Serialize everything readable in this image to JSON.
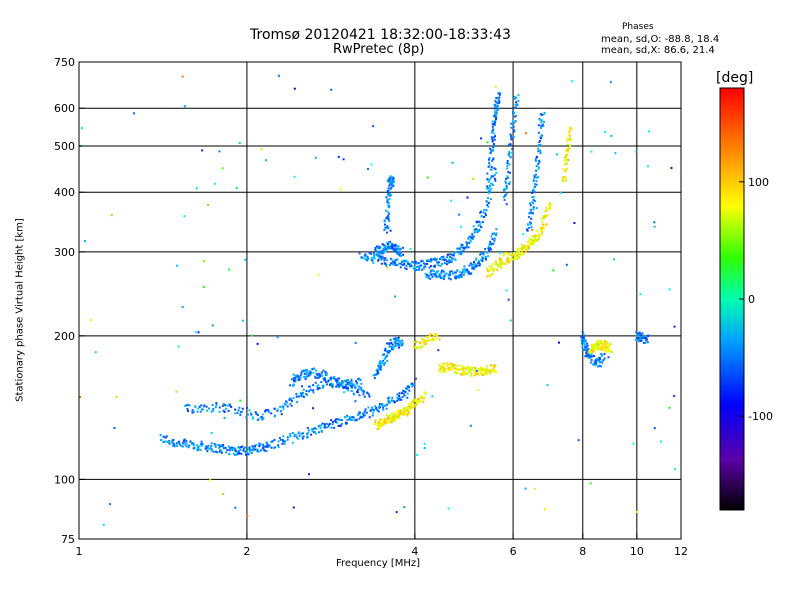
{
  "chart_data": {
    "type": "scatter",
    "title": "Tromsø 20120421 18:32:00-18:33:43",
    "subtitle": "RwPretec (8p)",
    "xlabel": "Frequency [MHz]",
    "ylabel": "Stationary phase Virtual Height [km]",
    "x_scale": "log",
    "y_scale": "log",
    "xlim": [
      1,
      12
    ],
    "ylim": [
      75,
      750
    ],
    "x_ticks": [
      1,
      2,
      4,
      6,
      8,
      10,
      12
    ],
    "x_tick_labels": [
      "1",
      "2",
      "4",
      "6",
      "8",
      "10",
      "12"
    ],
    "x_gridlines": [
      2,
      4,
      6,
      8,
      10
    ],
    "y_ticks": [
      75,
      100,
      200,
      300,
      400,
      500,
      600,
      750
    ],
    "y_tick_labels": [
      "75",
      "100",
      "200",
      "300",
      "400",
      "500",
      "600",
      "750"
    ],
    "y_gridlines": [
      100,
      200,
      300,
      400,
      500,
      600
    ],
    "grid": true,
    "colorbar": {
      "label": "[deg]",
      "range": [
        -180,
        180
      ],
      "ticks": [
        100,
        0,
        -100
      ],
      "tick_labels": [
        "100",
        "0",
        "-100"
      ]
    },
    "phases": {
      "title": "Phases",
      "o_mode": "mean, sd,O: -88.8, 18.4",
      "x_mode": "mean, sd,X: 86.6, 21.4"
    },
    "traces": [
      {
        "mode": "O",
        "phase": -100,
        "x": [
          1.4,
          1.5,
          1.6,
          1.7,
          1.8,
          1.9,
          2.0,
          2.1,
          2.2,
          2.4,
          2.6,
          2.8,
          3.0,
          3.2,
          3.4,
          3.6,
          3.8,
          4.0
        ],
        "y": [
          122,
          119,
          118,
          117,
          116,
          115,
          115,
          116,
          118,
          122,
          126,
          130,
          133,
          136,
          140,
          145,
          150,
          160
        ]
      },
      {
        "mode": "O",
        "phase": -100,
        "x": [
          1.55,
          1.7,
          1.9,
          2.1,
          2.3,
          2.5,
          2.7,
          2.9,
          3.1,
          3.3
        ],
        "y": [
          140,
          142,
          141,
          135,
          140,
          150,
          158,
          160,
          155,
          150
        ]
      },
      {
        "mode": "O",
        "phase": -100,
        "x": [
          2.4,
          2.5,
          2.6,
          2.75,
          2.9,
          3.05,
          3.2
        ],
        "y": [
          160,
          165,
          168,
          165,
          160,
          158,
          160
        ]
      },
      {
        "mode": "O",
        "phase": -100,
        "x": [
          3.4,
          3.5,
          3.6,
          3.7,
          3.8
        ],
        "y": [
          165,
          175,
          190,
          195,
          190
        ]
      },
      {
        "mode": "O",
        "phase": -100,
        "x": [
          3.2,
          3.4,
          3.6,
          3.8,
          4.0,
          4.2,
          4.4,
          4.6,
          4.8,
          5.0,
          5.2,
          5.4,
          5.6
        ],
        "y": [
          295,
          290,
          285,
          282,
          280,
          282,
          285,
          290,
          300,
          315,
          340,
          380,
          450
        ]
      },
      {
        "mode": "O",
        "phase": -100,
        "x": [
          4.2,
          4.4,
          4.6,
          4.8,
          5.0,
          5.2,
          5.4,
          5.6
        ],
        "y": [
          270,
          268,
          268,
          270,
          275,
          285,
          300,
          330
        ]
      },
      {
        "mode": "O",
        "phase": -100,
        "x": [
          3.4,
          3.5,
          3.6,
          3.7,
          3.8
        ],
        "y": [
          300,
          305,
          310,
          305,
          300
        ]
      },
      {
        "mode": "O",
        "phase": -100,
        "x": [
          3.55,
          3.58,
          3.6,
          3.62,
          3.65
        ],
        "y": [
          330,
          370,
          410,
          430,
          420
        ]
      },
      {
        "mode": "O",
        "phase": -100,
        "x": [
          5.4,
          5.5,
          5.55,
          5.6,
          5.65
        ],
        "y": [
          400,
          480,
          550,
          600,
          640
        ]
      },
      {
        "mode": "O",
        "phase": -100,
        "x": [
          6.4,
          6.5,
          6.6,
          6.7,
          6.8
        ],
        "y": [
          330,
          380,
          440,
          520,
          600
        ]
      },
      {
        "mode": "O",
        "phase": -100,
        "x": [
          5.8,
          5.9,
          6.0,
          6.1
        ],
        "y": [
          380,
          450,
          550,
          640
        ]
      },
      {
        "mode": "X",
        "phase": 100,
        "x": [
          3.4,
          3.5,
          3.6,
          3.7,
          3.8,
          3.9,
          4.0,
          4.2
        ],
        "y": [
          130,
          132,
          134,
          136,
          138,
          140,
          145,
          150
        ]
      },
      {
        "mode": "X",
        "phase": 100,
        "x": [
          4.4,
          4.6,
          4.8,
          5.0,
          5.2,
          5.4,
          5.6
        ],
        "y": [
          170,
          172,
          170,
          168,
          168,
          170,
          170
        ]
      },
      {
        "mode": "X",
        "phase": 100,
        "x": [
          4.0,
          4.2,
          4.4
        ],
        "y": [
          190,
          195,
          200
        ]
      },
      {
        "mode": "X",
        "phase": 100,
        "x": [
          5.4,
          5.6,
          5.8,
          6.0,
          6.2,
          6.4,
          6.6,
          6.8,
          7.0
        ],
        "y": [
          270,
          280,
          290,
          295,
          300,
          310,
          320,
          340,
          380
        ]
      },
      {
        "mode": "X",
        "phase": 100,
        "x": [
          7.4,
          7.5,
          7.6
        ],
        "y": [
          420,
          480,
          550
        ]
      },
      {
        "mode": "X",
        "phase": 100,
        "x": [
          8.2,
          8.4,
          8.6,
          8.8,
          9.0
        ],
        "y": [
          185,
          190,
          192,
          190,
          188
        ]
      },
      {
        "mode": "O",
        "phase": -100,
        "x": [
          8.0,
          8.1,
          8.2,
          8.5,
          8.7
        ],
        "y": [
          200,
          190,
          180,
          175,
          180
        ]
      },
      {
        "mode": "O",
        "phase": -100,
        "x": [
          10.0,
          10.2,
          10.5
        ],
        "y": [
          200,
          198,
          196
        ]
      }
    ]
  }
}
